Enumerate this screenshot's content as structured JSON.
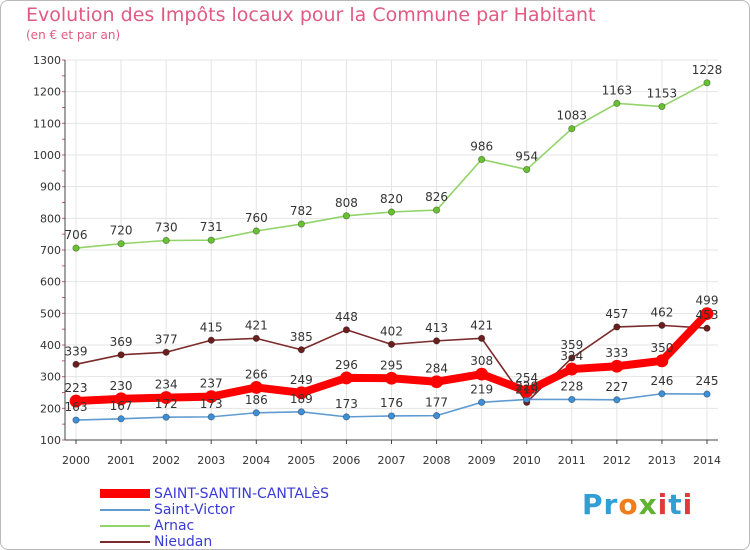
{
  "title": "Evolution des Impôts locaux pour la Commune par Habitant",
  "subtitle": "(en € et par an)",
  "logo": {
    "text": "Proxiti",
    "colors": [
      "#2f9fd6",
      "#f07d1a",
      "#5fb233",
      "#e03a3a"
    ]
  },
  "chart_data": {
    "type": "line",
    "categories": [
      "2000",
      "2001",
      "2002",
      "2003",
      "2004",
      "2005",
      "2006",
      "2007",
      "2008",
      "2009",
      "2010",
      "2011",
      "2012",
      "2013",
      "2014"
    ],
    "ylim": [
      100,
      1300
    ],
    "yticks": [
      100,
      200,
      300,
      400,
      500,
      600,
      700,
      800,
      900,
      1000,
      1100,
      1200,
      1300
    ],
    "grid": true,
    "legend_position": "bottom-left",
    "series": [
      {
        "name": "SAINT-SANTIN-CANTALèS",
        "color": "#ff0000",
        "marker_color": "#ff0000",
        "values": [
          223,
          230,
          234,
          237,
          266,
          249,
          296,
          295,
          284,
          308,
          254,
          324,
          333,
          350,
          499
        ],
        "labels": [
          "223",
          "230",
          "234",
          "237",
          "266",
          "249",
          "296",
          "295",
          "284",
          "308",
          "254",
          "324",
          "333",
          "350",
          "499"
        ]
      },
      {
        "name": "Saint-Victor",
        "color": "#5f9bd1",
        "marker_color": "#3d8fd6",
        "values": [
          163,
          167,
          172,
          173,
          186,
          189,
          173,
          176,
          177,
          219,
          228,
          228,
          227,
          246,
          245
        ],
        "labels": [
          "163",
          "167",
          "172",
          "173",
          "186",
          "189",
          "173",
          "176",
          "177",
          "219",
          "228",
          "228",
          "227",
          "246",
          "245"
        ]
      },
      {
        "name": "Arnac",
        "color": "#92d36a",
        "marker_color": "#67c131",
        "values": [
          706,
          720,
          730,
          731,
          760,
          782,
          808,
          820,
          826,
          986,
          954,
          1083,
          1163,
          1153,
          1228
        ],
        "labels": [
          "706",
          "720",
          "730",
          "731",
          "760",
          "782",
          "808",
          "820",
          "826",
          "986",
          "954",
          "1083",
          "1163",
          "1153",
          "1228"
        ]
      },
      {
        "name": "Nieudan",
        "color": "#7b2b2b",
        "marker_color": "#6a1f1f",
        "values": [
          339,
          369,
          377,
          415,
          421,
          385,
          448,
          402,
          413,
          421,
          219,
          359,
          457,
          462,
          453
        ],
        "labels": [
          "339",
          "369",
          "377",
          "415",
          "421",
          "385",
          "448",
          "402",
          "413",
          "421",
          "219",
          "359",
          "457",
          "462",
          "453"
        ]
      }
    ]
  }
}
